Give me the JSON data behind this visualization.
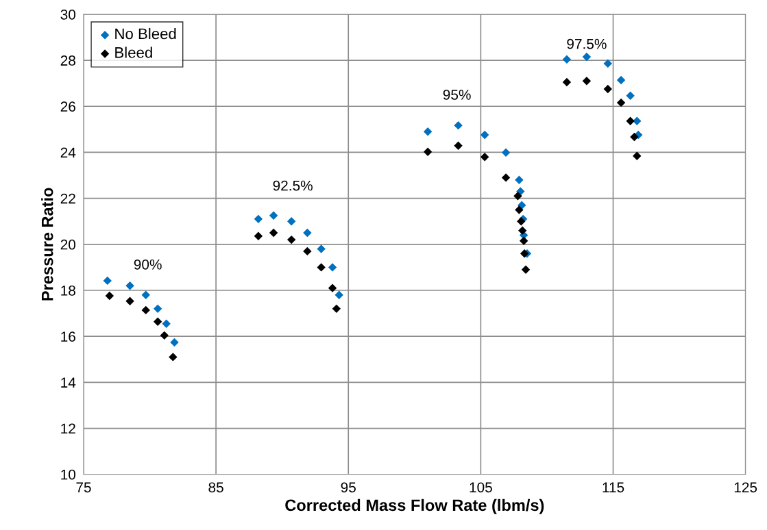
{
  "chart_data": {
    "type": "scatter",
    "xlabel": "Corrected Mass Flow Rate (lbm/s)",
    "ylabel": "Pressure Ratio",
    "xlim": [
      75,
      125
    ],
    "xticks": [
      75,
      85,
      95,
      105,
      115,
      125
    ],
    "ylim": [
      10,
      30
    ],
    "yticks": [
      10,
      12,
      14,
      16,
      18,
      20,
      22,
      24,
      26,
      28,
      30
    ],
    "grid": true,
    "legend": "top left",
    "marker": "diamond",
    "series": [
      {
        "name": "No Bleed",
        "color": "#0070c0",
        "x": [
          76.8,
          78.5,
          79.7,
          80.6,
          81.25,
          81.86,
          88.2,
          89.35,
          90.7,
          91.9,
          92.95,
          93.8,
          94.3,
          101.0,
          103.3,
          105.3,
          106.9,
          107.9,
          108.0,
          108.1,
          108.2,
          108.25,
          108.5,
          111.5,
          113.0,
          114.6,
          115.6,
          116.3,
          116.8,
          116.9
        ],
        "values": [
          18.42,
          18.2,
          17.8,
          17.2,
          16.55,
          15.74,
          21.1,
          21.25,
          21.0,
          20.5,
          19.8,
          19.0,
          17.8,
          24.9,
          25.17,
          24.76,
          23.99,
          22.8,
          22.3,
          21.7,
          21.1,
          20.4,
          19.6,
          28.04,
          28.15,
          27.86,
          27.14,
          26.46,
          25.36,
          24.76
        ]
      },
      {
        "name": "Bleed",
        "color": "#000000",
        "x": [
          76.96,
          78.5,
          79.7,
          80.6,
          81.1,
          81.75,
          88.2,
          89.35,
          90.7,
          91.9,
          92.95,
          93.8,
          94.1,
          101.0,
          103.3,
          105.3,
          106.9,
          107.8,
          107.9,
          108.05,
          108.15,
          108.25,
          108.3,
          108.4,
          111.5,
          113.0,
          114.6,
          115.6,
          116.3,
          116.6,
          116.8
        ],
        "values": [
          17.76,
          17.53,
          17.14,
          16.64,
          16.04,
          15.1,
          20.36,
          20.5,
          20.2,
          19.7,
          19.0,
          18.1,
          17.2,
          24.02,
          24.29,
          23.8,
          22.9,
          22.1,
          21.5,
          21.0,
          20.6,
          20.15,
          19.6,
          18.9,
          27.05,
          27.1,
          26.75,
          26.16,
          25.36,
          24.67,
          23.84
        ]
      }
    ],
    "annotations": [
      "90%",
      "92.5%",
      "95%",
      "97.5%"
    ]
  }
}
